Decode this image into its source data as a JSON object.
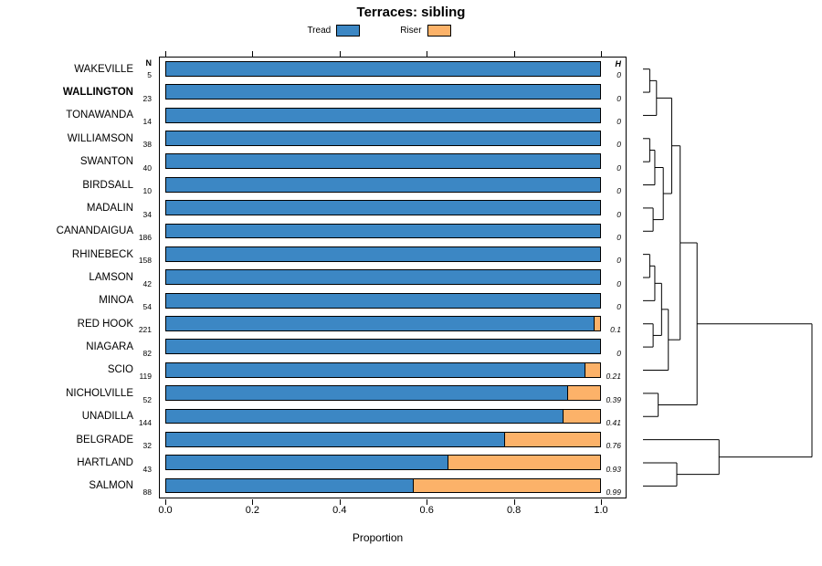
{
  "title": "Terraces: sibling",
  "legend": [
    {
      "label": "Tread",
      "color": "#3C87C4"
    },
    {
      "label": "Riser",
      "color": "#FCB269"
    }
  ],
  "columns": {
    "n_header": "N",
    "h_header": "H"
  },
  "axis": {
    "xlabel": "Proportion",
    "ticks": [
      "0.0",
      "0.2",
      "0.4",
      "0.6",
      "0.8",
      "1.0"
    ],
    "tick_values": [
      0,
      0.2,
      0.4,
      0.6,
      0.8,
      1.0
    ]
  },
  "chart_data": {
    "type": "bar",
    "stacked": true,
    "orientation": "horizontal",
    "title": "Terraces: sibling",
    "xlabel": "Proportion",
    "xlim": [
      0,
      1
    ],
    "categories": [
      "WAKEVILLE",
      "WALLINGTON",
      "TONAWANDA",
      "WILLIAMSON",
      "SWANTON",
      "BIRDSALL",
      "MADALIN",
      "CANANDAIGUA",
      "RHINEBECK",
      "LAMSON",
      "MINOA",
      "RED HOOK",
      "NIAGARA",
      "SCIO",
      "NICHOLVILLE",
      "UNADILLA",
      "BELGRADE",
      "HARTLAND",
      "SALMON"
    ],
    "bold_categories": [
      "WALLINGTON"
    ],
    "n": [
      5,
      23,
      14,
      38,
      40,
      10,
      34,
      186,
      158,
      42,
      54,
      221,
      82,
      119,
      52,
      144,
      32,
      43,
      88
    ],
    "series": [
      {
        "name": "Tread",
        "color": "#3C87C4",
        "values": [
          1,
          1,
          1,
          1,
          1,
          1,
          1,
          1,
          1,
          1,
          1,
          0.986,
          1,
          0.965,
          0.924,
          0.915,
          0.78,
          0.65,
          0.57
        ]
      },
      {
        "name": "Riser",
        "color": "#FCB269",
        "values": [
          0,
          0,
          0,
          0,
          0,
          0,
          0,
          0,
          0,
          0,
          0,
          0.014,
          0,
          0.035,
          0.076,
          0.085,
          0.22,
          0.35,
          0.43
        ]
      }
    ],
    "h": [
      "0",
      "0",
      "0",
      "0",
      "0",
      "0",
      "0",
      "0",
      "0",
      "0",
      "0",
      "0.1",
      "0",
      "0.21",
      "0.39",
      "0.41",
      "0.76",
      "0.93",
      "0.99"
    ],
    "dendrogram": {
      "merges": [
        {
          "a": "L0",
          "b": "L1",
          "h": 0.04
        },
        {
          "a": "M0",
          "b": "L2",
          "h": 0.08
        },
        {
          "a": "L3",
          "b": "L4",
          "h": 0.04
        },
        {
          "a": "M2",
          "b": "L5",
          "h": 0.07
        },
        {
          "a": "L6",
          "b": "L7",
          "h": 0.06
        },
        {
          "a": "M3",
          "b": "M4",
          "h": 0.12
        },
        {
          "a": "M1",
          "b": "M5",
          "h": 0.17
        },
        {
          "a": "L8",
          "b": "L9",
          "h": 0.04
        },
        {
          "a": "M7",
          "b": "L10",
          "h": 0.07
        },
        {
          "a": "L11",
          "b": "L12",
          "h": 0.06
        },
        {
          "a": "M8",
          "b": "M9",
          "h": 0.11
        },
        {
          "a": "M10",
          "b": "L13",
          "h": 0.15
        },
        {
          "a": "M6",
          "b": "M11",
          "h": 0.22
        },
        {
          "a": "L14",
          "b": "L15",
          "h": 0.09
        },
        {
          "a": "M12",
          "b": "M13",
          "h": 0.32
        },
        {
          "a": "L17",
          "b": "L18",
          "h": 0.2
        },
        {
          "a": "L16",
          "b": "M15",
          "h": 0.45
        },
        {
          "a": "M14",
          "b": "M16",
          "h": 1.0
        }
      ]
    }
  }
}
